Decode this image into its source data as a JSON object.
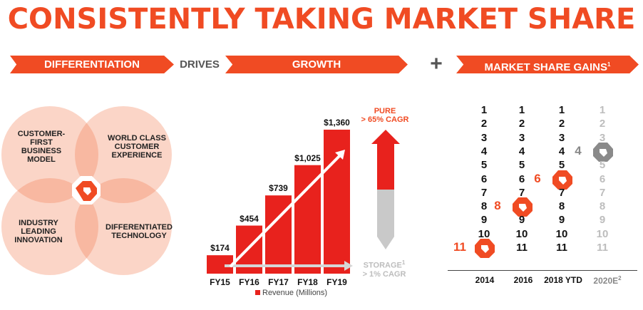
{
  "title": "CONSISTENTLY TAKING MARKET SHARE",
  "banners": {
    "differentiation": "DIFFERENTIATION",
    "drives": "DRIVES",
    "growth": "GROWTH",
    "plus": "+",
    "market_share_gains": "MARKET SHARE GAINS",
    "market_share_gains_sup": "1"
  },
  "venn": {
    "top_left": "CUSTOMER-\nFIRST\nBUSINESS\nMODEL",
    "top_right": "WORLD CLASS\nCUSTOMER\nEXPERIENCE",
    "bottom_left": "INDUSTRY\nLEADING\nINNOVATION",
    "bottom_right": "DIFFERENTIATED\nTECHNOLOGY",
    "center_icon": "pure-storage-logo-icon"
  },
  "colors": {
    "brand": "#f04b23",
    "bar": "#e8221d",
    "grey": "#c9c9c9",
    "venn": "#f9c9b5"
  },
  "chart_data": [
    {
      "type": "bar",
      "categories": [
        "FY15",
        "FY16",
        "FY17",
        "FY18",
        "FY19"
      ],
      "values": [
        174,
        454,
        739,
        1025,
        1360
      ],
      "labels": [
        "$174",
        "$454",
        "$739",
        "$1,025",
        "$1,360"
      ],
      "legend": "Revenue (Millions)",
      "ylim": [
        0,
        1400
      ]
    },
    {
      "type": "bar",
      "categories": [
        "PURE",
        "STORAGE"
      ],
      "series": [
        {
          "label_main": "PURE",
          "label_sub": "> 65% CAGR",
          "value_pct": 65
        },
        {
          "label_main": "STORAGE",
          "label_sup": "1",
          "label_sub": "> 1% CAGR",
          "value_pct": 1
        }
      ]
    },
    {
      "type": "table",
      "title": "MARKET SHARE GAINS",
      "years": [
        "2014",
        "2016",
        "2018 YTD",
        "2020E"
      ],
      "year_sup": [
        "",
        "",
        "",
        "2"
      ],
      "ranks": [
        "1",
        "2",
        "3",
        "4",
        "5",
        "6",
        "7",
        "8",
        "9",
        "10",
        "11"
      ],
      "pure_rank": [
        11,
        8,
        6,
        4
      ],
      "pure_rank_labels": [
        "11",
        "8",
        "6",
        "4"
      ]
    }
  ]
}
